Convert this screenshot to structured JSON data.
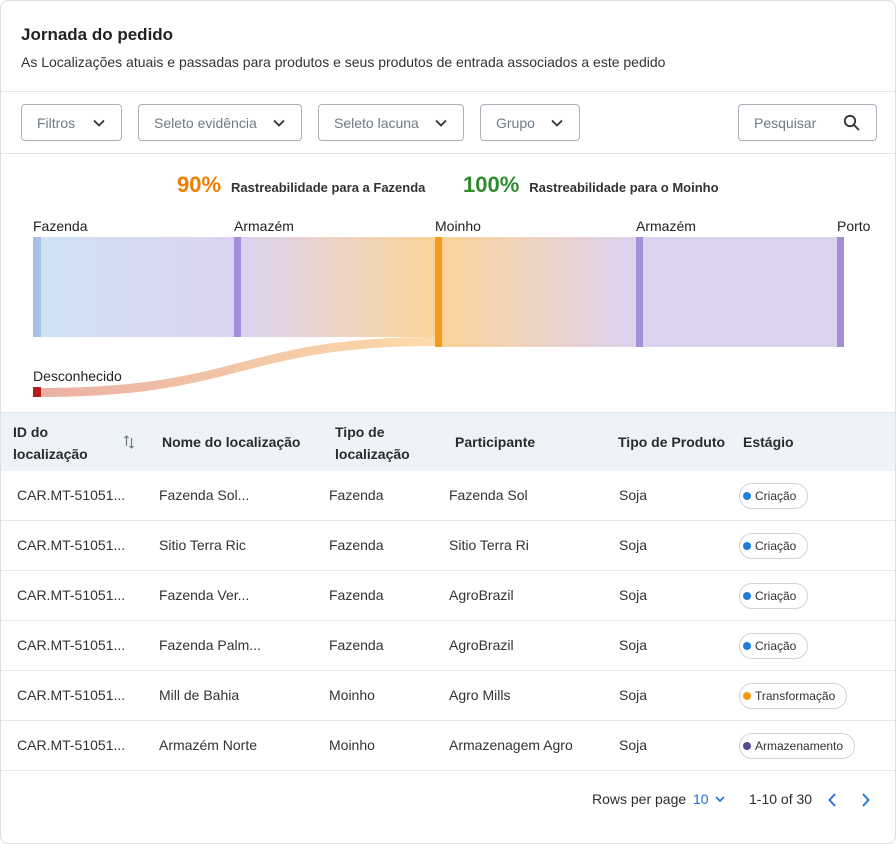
{
  "header": {
    "title": "Jornada do pedido",
    "subtitle": "As Localizações atuais e passadas para produtos e seus produtos de entrada associados a este pedido"
  },
  "filters": {
    "filtros": "Filtros",
    "evidencia": "Seleto evidência",
    "lacuna": "Seleto lacuna",
    "grupo": "Grupo",
    "search_placeholder": "Pesquisar"
  },
  "stats": [
    {
      "value": "90%",
      "label": "Rastreabilidade para a Fazenda",
      "color": "#f07d00"
    },
    {
      "value": "100%",
      "label": "Rastreabilidade para o Moinho",
      "color": "#2e8b2e"
    }
  ],
  "flow": {
    "nodes": [
      "Fazenda",
      "Armazém",
      "Moinho",
      "Armazém",
      "Porto"
    ],
    "unknown": "Desconhecido"
  },
  "table": {
    "columns": [
      "ID do localização",
      "Nome do localização",
      "Tipo de localização",
      "Participante",
      "Tipo de Produto",
      "Estágio"
    ],
    "rows": [
      {
        "id": "CAR.MT-51051...",
        "name": "Fazenda Sol...",
        "type": "Fazenda",
        "participant": "Fazenda Sol",
        "product": "Soja",
        "stage": "Criação",
        "stage_color": "#1f7fd8"
      },
      {
        "id": "CAR.MT-51051...",
        "name": "Sitio Terra Ric",
        "type": "Fazenda",
        "participant": "Sitio Terra Ri",
        "product": "Soja",
        "stage": "Criação",
        "stage_color": "#1f7fd8"
      },
      {
        "id": "CAR.MT-51051...",
        "name": "Fazenda Ver...",
        "type": "Fazenda",
        "participant": "AgroBrazil",
        "product": "Soja",
        "stage": "Criação",
        "stage_color": "#1f7fd8"
      },
      {
        "id": "CAR.MT-51051...",
        "name": "Fazenda Palm...",
        "type": "Fazenda",
        "participant": "AgroBrazil",
        "product": "Soja",
        "stage": "Criação",
        "stage_color": "#1f7fd8"
      },
      {
        "id": "CAR.MT-51051...",
        "name": "Mill de Bahia",
        "type": "Moinho",
        "participant": "Agro Mills",
        "product": "Soja",
        "stage": "Transformação",
        "stage_color": "#f39c12"
      },
      {
        "id": "CAR.MT-51051...",
        "name": "Armazém Norte",
        "type": "Moinho",
        "participant": "Armazenagem Agro",
        "product": "Soja",
        "stage": "Armazenamento",
        "stage_color": "#5b4a8c"
      }
    ]
  },
  "pagination": {
    "rows_per_page_label": "Rows per page",
    "rows_per_page_value": "10",
    "range": "1-10 of 30"
  }
}
